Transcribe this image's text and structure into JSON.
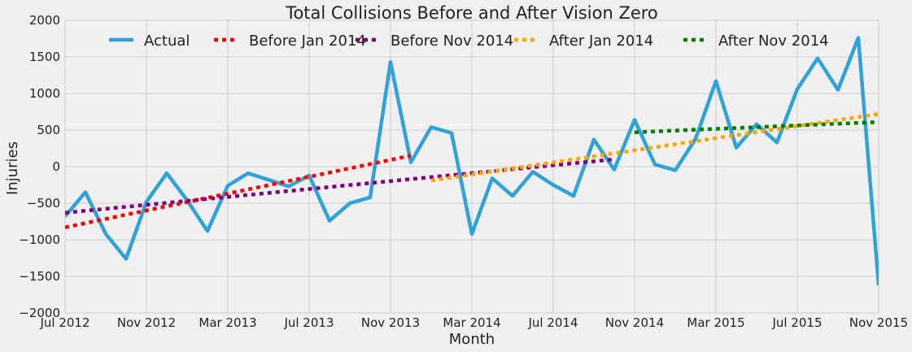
{
  "chart_data": {
    "type": "line",
    "title": "Total Collisions Before and After Vision Zero",
    "xlabel": "Month",
    "ylabel": "Injuries",
    "ylim": [
      -2000,
      2000
    ],
    "yticks": [
      -2000,
      -1500,
      -1000,
      -500,
      0,
      500,
      1000,
      1500,
      2000
    ],
    "ytick_labels": [
      "−2000",
      "−1500",
      "−1000",
      "−500",
      "0",
      "500",
      "1000",
      "1500",
      "2000"
    ],
    "xlim": [
      "2012-07",
      "2015-11"
    ],
    "xticks": [
      "2012-07",
      "2012-11",
      "2013-03",
      "2013-07",
      "2013-11",
      "2014-03",
      "2014-07",
      "2014-11",
      "2015-03",
      "2015-07",
      "2015-11"
    ],
    "xtick_labels": [
      "Jul 2012",
      "Nov 2012",
      "Mar 2013",
      "Jul 2013",
      "Nov 2013",
      "Mar 2014",
      "Jul 2014",
      "Nov 2014",
      "Mar 2015",
      "Jul 2015",
      "Nov 2015"
    ],
    "grid": true,
    "legend_placement": "top-center",
    "series": [
      {
        "name": "Actual",
        "color": "#30a2da",
        "style": "solid",
        "x": [
          "2012-07",
          "2012-08",
          "2012-09",
          "2012-10",
          "2012-11",
          "2012-12",
          "2013-01",
          "2013-02",
          "2013-03",
          "2013-04",
          "2013-05",
          "2013-06",
          "2013-07",
          "2013-08",
          "2013-09",
          "2013-10",
          "2013-11",
          "2013-12",
          "2014-01",
          "2014-02",
          "2014-03",
          "2014-04",
          "2014-05",
          "2014-06",
          "2014-07",
          "2014-08",
          "2014-09",
          "2014-10",
          "2014-11",
          "2014-12",
          "2015-01",
          "2015-02",
          "2015-03",
          "2015-04",
          "2015-05",
          "2015-06",
          "2015-07",
          "2015-08",
          "2015-09",
          "2015-10",
          "2015-11"
        ],
        "y": [
          -680,
          -350,
          -920,
          -1260,
          -480,
          -90,
          -460,
          -880,
          -260,
          -90,
          -180,
          -270,
          -120,
          -740,
          -500,
          -420,
          1430,
          60,
          540,
          460,
          -920,
          -160,
          -400,
          -70,
          -250,
          -400,
          370,
          -40,
          640,
          30,
          -50,
          380,
          1170,
          260,
          580,
          330,
          1060,
          1480,
          1050,
          1760,
          -1620
        ]
      },
      {
        "name": "Before Jan 2014",
        "color": "#ff0000",
        "style": "dashed",
        "x": [
          "2012-07",
          "2013-12"
        ],
        "y": [
          -830,
          150
        ]
      },
      {
        "name": "Before Nov 2014",
        "color": "#800080",
        "style": "dashed",
        "x": [
          "2012-07",
          "2014-10"
        ],
        "y": [
          -630,
          100
        ]
      },
      {
        "name": "After Jan 2014",
        "color": "#ffa500",
        "style": "dashed",
        "x": [
          "2014-01",
          "2015-11"
        ],
        "y": [
          -190,
          720
        ]
      },
      {
        "name": "After Nov 2014",
        "color": "#008000",
        "style": "dashed",
        "x": [
          "2014-11",
          "2015-11"
        ],
        "y": [
          470,
          610
        ]
      }
    ]
  }
}
